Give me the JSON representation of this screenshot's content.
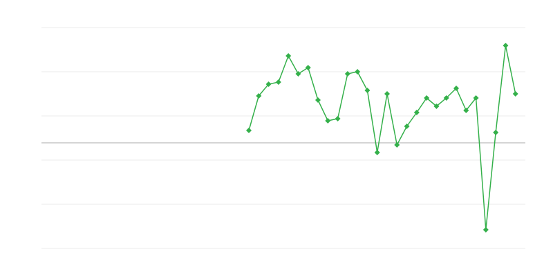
{
  "chart_data": {
    "type": "line",
    "title": "",
    "xlabel": "",
    "ylabel": "",
    "xlim": [
      0,
      49
    ],
    "ylim": [
      -15.3,
      16.7
    ],
    "grid": true,
    "gridlines": [
      16.7,
      10.3,
      3.9,
      -2.5,
      -8.9,
      -15.3
    ],
    "baseline": 0,
    "legend": "none",
    "series": [
      {
        "color": "#34b04a",
        "marker": "diamond",
        "x": [
          21,
          22,
          23,
          24,
          25,
          26,
          27,
          28,
          29,
          30,
          31,
          32,
          33,
          34,
          35,
          36,
          37,
          38,
          39,
          40,
          41,
          42,
          43,
          44,
          45,
          46,
          47,
          48
        ],
        "values": [
          1.8,
          6.8,
          8.5,
          8.8,
          12.6,
          10.0,
          10.9,
          6.2,
          3.2,
          3.5,
          10.0,
          10.3,
          7.6,
          -1.4,
          7.1,
          -0.3,
          2.4,
          4.4,
          6.5,
          5.3,
          6.5,
          7.9,
          4.7,
          6.5,
          -12.6,
          1.5,
          14.1,
          7.1
        ]
      }
    ],
    "colors": {
      "grid": "#ebebeb",
      "baseline": "#aaaaaa"
    }
  }
}
